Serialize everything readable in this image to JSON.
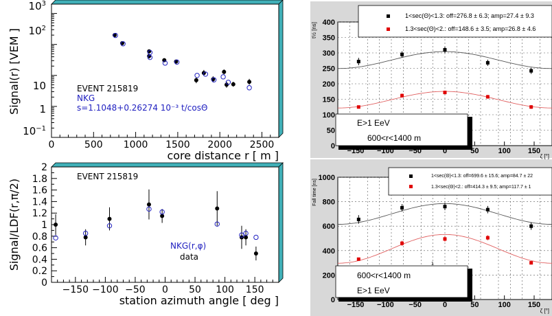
{
  "chart_data": [
    {
      "type": "scatter",
      "panel": "top-left",
      "xlabel": "core distance r [ m ]",
      "ylabel": "Signal(r) [VEM ]",
      "xlim": [
        0,
        2700
      ],
      "ylim": [
        0.1,
        2000
      ],
      "log_y": true,
      "x_ticks": [
        "0",
        "500",
        "1000",
        "1500",
        "2000",
        "2500"
      ],
      "y_ticks": [
        "10^{-1}",
        "1",
        "10",
        "10^2",
        "10^3"
      ],
      "annotations": {
        "event": "EVENT 215819",
        "nkg": "NKG",
        "formula": "s=1.1048+0.26274 10⁻³ t/cosΘ"
      },
      "series": [
        {
          "marker": "filled",
          "points": [
            [
              750,
              200
            ],
            [
              840,
              110
            ],
            [
              1160,
              60
            ],
            [
              1160,
              42
            ],
            [
              1340,
              31
            ],
            [
              1480,
              28
            ],
            [
              1720,
              7
            ],
            [
              1810,
              12
            ],
            [
              1920,
              7.5
            ],
            [
              2050,
              13
            ],
            [
              2080,
              5
            ],
            [
              2160,
              5.2
            ],
            [
              2350,
              6.2
            ]
          ]
        },
        {
          "marker": "open",
          "points": [
            [
              760,
              195
            ],
            [
              850,
              105
            ],
            [
              1170,
              55
            ],
            [
              1170,
              38
            ],
            [
              1350,
              25
            ],
            [
              1490,
              27
            ],
            [
              1730,
              10
            ],
            [
              1830,
              11
            ],
            [
              1930,
              7.2
            ],
            [
              2040,
              9
            ],
            [
              2100,
              6
            ],
            [
              2350,
              4
            ]
          ]
        }
      ]
    },
    {
      "type": "scatter",
      "panel": "bottom-left",
      "xlabel": "station azimuth angle [ deg ]",
      "ylabel": "Signal/LDF(r,π/2)",
      "xlim": [
        -190,
        190
      ],
      "ylim": [
        0,
        2
      ],
      "x_ticks": [
        "−150",
        "−100",
        "−50",
        "0",
        "50",
        "100",
        "150"
      ],
      "y_ticks": [
        "0",
        "0.2",
        "0.4",
        "0.6",
        "0.8",
        "1",
        "1.2",
        "1.4",
        "1.6",
        "1.8",
        "2"
      ],
      "annotations": {
        "event": "EVENT 215819",
        "nkg_label": "NKG(r,φ)",
        "data_label": "data"
      },
      "series": [
        {
          "marker": "filled",
          "points": [
            [
              -183,
              1.0
            ],
            [
              -133,
              0.78
            ],
            [
              -93,
              1.1
            ],
            [
              -27,
              1.35
            ],
            [
              -5,
              1.15
            ],
            [
              87,
              1.28
            ],
            [
              128,
              0.78
            ],
            [
              135,
              0.78
            ],
            [
              152,
              0.5
            ]
          ]
        },
        {
          "marker": "open",
          "points": [
            [
              -183,
              0.77
            ],
            [
              -133,
              0.85
            ],
            [
              -93,
              0.98
            ],
            [
              -27,
              1.27
            ],
            [
              -5,
              1.22
            ],
            [
              87,
              1.01
            ],
            [
              128,
              0.82
            ],
            [
              135,
              0.85
            ],
            [
              152,
              0.78
            ]
          ]
        }
      ]
    },
    {
      "type": "scatter",
      "panel": "top-right",
      "ylabel": "t½ [ns]",
      "xlabel": "ζ [°]",
      "xlim": [
        -180,
        180
      ],
      "ylim": [
        0,
        400
      ],
      "x_ticks": [
        "−150",
        "−100",
        "−50",
        "0",
        "50",
        "100",
        "150"
      ],
      "y_ticks": [
        "0",
        "50",
        "100",
        "150",
        "200",
        "250",
        "300",
        "350",
        "400"
      ],
      "legend": [
        "1<sec(Θ)<1.3: off=276.8 ± 6.3; amp=27.4 ± 9.3",
        "1.3<sec(Θ)<2.: off=148.6 ± 3.5; amp=26.8 ± 4.6"
      ],
      "box_text": [
        "E>1 EeV",
        "600<r<1400 m"
      ],
      "series": [
        {
          "name": "1<sec(Θ)<1.3: off=276.8 ± 6.3; amp=27.4 ± 9.3",
          "color": "#000000",
          "points": [
            [
              -145,
              272
            ],
            [
              -72,
              295
            ],
            [
              0,
              310
            ],
            [
              72,
              268
            ],
            [
              145,
              242
            ]
          ]
        },
        {
          "name": "1.3<sec(Θ)<2.: off=148.6 ± 3.5; amp=26.8 ± 4.6",
          "color": "#e00000",
          "points": [
            [
              -145,
              125
            ],
            [
              -72,
              162
            ],
            [
              0,
              172
            ],
            [
              72,
              158
            ],
            [
              145,
              125
            ]
          ]
        }
      ]
    },
    {
      "type": "scatter",
      "panel": "bottom-right",
      "ylabel": "Fall time [ns]",
      "xlabel": "ζ [°]",
      "xlim": [
        -180,
        180
      ],
      "ylim": [
        0,
        1000
      ],
      "x_ticks": [
        "−150",
        "−100",
        "−50",
        "0",
        "50",
        "100",
        "150"
      ],
      "y_ticks": [
        "0",
        "200",
        "400",
        "600",
        "800",
        "1000"
      ],
      "legend": [
        "1<sec(Θ)<1.3: off=699.6 ± 15.6; amp=84.7 ± 22",
        "1.3<sec(Θ)<2.: off=414.3 ± 9.5; amp=117.7 ± 1"
      ],
      "box_text": [
        "600<r<1400 m",
        "E>1 EeV"
      ],
      "stray_label": "1",
      "series": [
        {
          "name": "1<sec(Θ)<1.3: off=699.6 ± 15.6; amp=84.7 ± 22",
          "color": "#000000",
          "points": [
            [
              -145,
              655
            ],
            [
              -72,
              750
            ],
            [
              0,
              760
            ],
            [
              72,
              735
            ],
            [
              145,
              600
            ]
          ]
        },
        {
          "name": "1.3<sec(Θ)<2.: off=414.3 ± 9.5; amp=117.7 ± 1",
          "color": "#e00000",
          "points": [
            [
              -145,
              330
            ],
            [
              -72,
              460
            ],
            [
              0,
              495
            ],
            [
              72,
              505
            ],
            [
              145,
              300
            ]
          ]
        }
      ]
    }
  ]
}
